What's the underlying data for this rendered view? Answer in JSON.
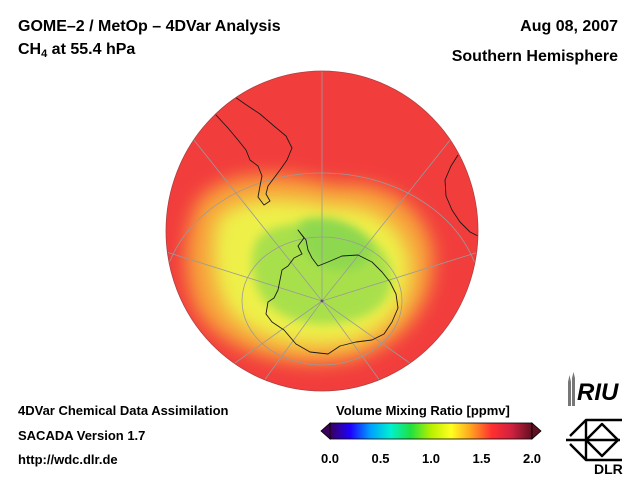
{
  "header": {
    "title_line1": "GOME–2 / MetOp – 4DVar Analysis",
    "species_main": "CH",
    "species_sub": "4",
    "species_rest": " at 55.4 hPa",
    "date": "Aug 08, 2007",
    "hemisphere": "Southern Hemisphere"
  },
  "footer": {
    "line1": "4DVar Chemical Data Assimilation",
    "line2": "SACADA Version 1.7",
    "line3": "http://wdc.dlr.de"
  },
  "colorbar": {
    "title": "Volume Mixing Ratio [ppmv]",
    "ticks": [
      "0.0",
      "0.5",
      "1.0",
      "1.5",
      "2.0"
    ],
    "min": 0.0,
    "max": 2.0,
    "colors": [
      "#3a005a",
      "#1e00ff",
      "#00a0ff",
      "#00f0d0",
      "#20e040",
      "#b8f000",
      "#ffff20",
      "#ffa020",
      "#ff3030",
      "#d02040",
      "#601020"
    ]
  },
  "map": {
    "projection": "orthographic",
    "center": "South Pole",
    "field_colors": {
      "background": "#f23d3d",
      "mid_ring": "#f7a23a",
      "inner_ring": "#eef04a",
      "center": "#a8e04c",
      "peak": "#8ed850"
    }
  },
  "logos": {
    "riu": "RIU",
    "dlr": "DLR"
  }
}
